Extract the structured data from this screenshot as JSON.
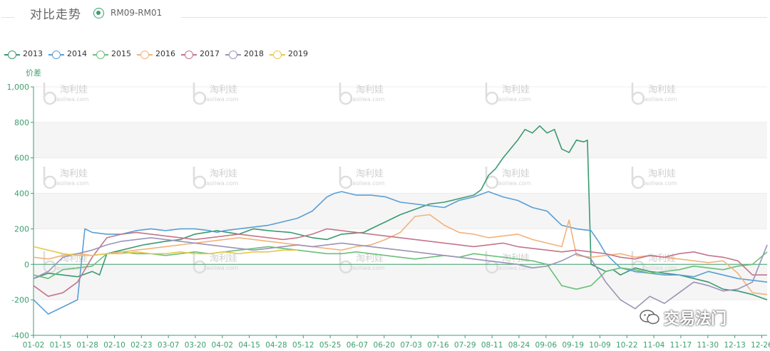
{
  "header": {
    "title": "对比走势",
    "spread_label": "RM09-RM01"
  },
  "brand": {
    "text": "交易法门"
  },
  "watermark": {
    "text": "淘利娃",
    "sub": "taoliwa.com"
  },
  "colors": {
    "accent": "#3d9f6e",
    "band": "#f5f5f5",
    "zero_line": "#3d9f6e"
  },
  "chart_data": {
    "type": "line",
    "ylabel": "价差",
    "ylim": [
      -400,
      1000
    ],
    "yticks": [
      -400,
      -200,
      0,
      200,
      400,
      600,
      800,
      1000
    ],
    "ytick_labels": [
      "-400",
      "-200",
      "0",
      "200",
      "400",
      "600",
      "800",
      "1,000"
    ],
    "x_tick_labels": [
      "01-02",
      "01-15",
      "01-28",
      "02-10",
      "02-23",
      "03-07",
      "03-20",
      "04-02",
      "04-15",
      "04-28",
      "05-12",
      "05-25",
      "06-07",
      "06-20",
      "07-03",
      "07-16",
      "07-29",
      "08-11",
      "08-24",
      "09-06",
      "09-19",
      "10-09",
      "10-22",
      "11-04",
      "11-17",
      "11-30",
      "12-13",
      "12-26"
    ],
    "x_range": [
      0,
      100
    ],
    "legend_position": "top-left",
    "grid": "alternating horizontal bands",
    "series": [
      {
        "name": "2013",
        "color": "#3a9a70",
        "x": [
          0,
          2,
          4,
          6,
          8,
          9,
          10,
          12,
          15,
          18,
          20,
          22,
          25,
          28,
          30,
          32,
          35,
          38,
          40,
          42,
          45,
          47,
          48,
          50,
          52,
          54,
          56,
          58,
          60,
          61,
          62,
          63,
          64,
          65,
          66,
          67,
          68,
          69,
          70,
          71,
          72,
          73,
          74,
          75,
          75.5,
          76,
          77,
          78,
          79,
          80,
          82,
          84,
          86,
          88,
          90,
          92,
          94,
          96,
          98,
          100
        ],
        "y": [
          -80,
          -50,
          -60,
          -70,
          -40,
          -60,
          60,
          80,
          110,
          130,
          140,
          170,
          190,
          170,
          200,
          190,
          180,
          150,
          140,
          170,
          180,
          220,
          240,
          280,
          310,
          340,
          350,
          370,
          390,
          420,
          500,
          540,
          600,
          650,
          700,
          760,
          740,
          780,
          740,
          760,
          650,
          630,
          700,
          690,
          700,
          0,
          -20,
          -40,
          -30,
          -60,
          -20,
          -40,
          -50,
          -60,
          -80,
          -100,
          -140,
          -150,
          -170,
          -200
        ]
      },
      {
        "name": "2014",
        "color": "#5a9fd4",
        "x": [
          0,
          2,
          4,
          6,
          7,
          8,
          10,
          12,
          14,
          16,
          18,
          20,
          22,
          24,
          25,
          26,
          28,
          30,
          32,
          34,
          36,
          38,
          40,
          41,
          42,
          44,
          46,
          48,
          50,
          52,
          54,
          56,
          58,
          60,
          62,
          64,
          66,
          68,
          70,
          72,
          74,
          76,
          77,
          78,
          80,
          82,
          84,
          86,
          88,
          90,
          92,
          94,
          96,
          98,
          100
        ],
        "y": [
          -200,
          -280,
          -240,
          -200,
          200,
          180,
          170,
          170,
          190,
          200,
          190,
          200,
          200,
          190,
          180,
          190,
          200,
          210,
          220,
          240,
          260,
          300,
          380,
          400,
          410,
          390,
          390,
          380,
          350,
          340,
          330,
          320,
          360,
          380,
          410,
          380,
          360,
          320,
          300,
          220,
          200,
          190,
          130,
          60,
          -20,
          -40,
          -50,
          -60,
          -60,
          -70,
          -40,
          -60,
          -80,
          -90,
          -100
        ]
      },
      {
        "name": "2015",
        "color": "#6bbf7a",
        "x": [
          0,
          2,
          4,
          6,
          8,
          10,
          12,
          14,
          16,
          18,
          20,
          22,
          24,
          26,
          28,
          30,
          32,
          34,
          36,
          38,
          40,
          42,
          44,
          46,
          48,
          50,
          52,
          54,
          56,
          58,
          60,
          62,
          64,
          66,
          68,
          70,
          72,
          74,
          76,
          78,
          80,
          82,
          84,
          86,
          88,
          90,
          92,
          94,
          96,
          98,
          100
        ],
        "y": [
          -60,
          -80,
          -30,
          -20,
          -10,
          60,
          70,
          60,
          60,
          50,
          60,
          70,
          60,
          70,
          80,
          90,
          100,
          90,
          80,
          70,
          60,
          60,
          70,
          60,
          50,
          40,
          30,
          40,
          50,
          40,
          60,
          50,
          40,
          30,
          20,
          0,
          -120,
          -140,
          -120,
          -40,
          -20,
          -30,
          -50,
          -40,
          -30,
          -10,
          -20,
          -30,
          -10,
          0,
          70
        ]
      },
      {
        "name": "2016",
        "color": "#f2b27a",
        "x": [
          0,
          2,
          4,
          6,
          8,
          10,
          12,
          14,
          16,
          18,
          20,
          22,
          24,
          26,
          28,
          30,
          32,
          34,
          36,
          38,
          40,
          42,
          44,
          46,
          48,
          50,
          52,
          54,
          56,
          58,
          60,
          62,
          64,
          66,
          68,
          70,
          72,
          73,
          74,
          76,
          78,
          80,
          82,
          84,
          86,
          88,
          90,
          92,
          94,
          96,
          98,
          100
        ],
        "y": [
          40,
          30,
          50,
          60,
          50,
          60,
          70,
          80,
          90,
          100,
          110,
          120,
          130,
          140,
          150,
          140,
          130,
          120,
          110,
          100,
          90,
          80,
          100,
          110,
          140,
          180,
          270,
          280,
          220,
          180,
          170,
          150,
          160,
          170,
          140,
          120,
          100,
          250,
          50,
          40,
          50,
          60,
          40,
          50,
          40,
          30,
          20,
          10,
          20,
          -50,
          -160,
          -170
        ]
      },
      {
        "name": "2017",
        "color": "#c4758a",
        "x": [
          0,
          2,
          4,
          6,
          8,
          10,
          12,
          14,
          16,
          18,
          20,
          22,
          24,
          26,
          28,
          30,
          32,
          34,
          36,
          38,
          40,
          42,
          44,
          46,
          48,
          50,
          52,
          54,
          56,
          58,
          60,
          62,
          64,
          66,
          68,
          70,
          72,
          74,
          76,
          78,
          80,
          82,
          84,
          86,
          88,
          90,
          92,
          94,
          96,
          98,
          100
        ],
        "y": [
          -120,
          -180,
          -160,
          -100,
          40,
          150,
          170,
          180,
          170,
          160,
          150,
          140,
          150,
          160,
          170,
          160,
          150,
          140,
          150,
          170,
          200,
          190,
          180,
          170,
          160,
          150,
          140,
          130,
          120,
          110,
          100,
          110,
          120,
          100,
          90,
          80,
          70,
          80,
          70,
          60,
          40,
          30,
          50,
          40,
          60,
          70,
          50,
          40,
          20,
          -60,
          -60
        ]
      },
      {
        "name": "2018",
        "color": "#9c93b8",
        "x": [
          0,
          2,
          4,
          6,
          8,
          10,
          12,
          14,
          16,
          18,
          20,
          22,
          24,
          26,
          28,
          30,
          32,
          34,
          36,
          38,
          40,
          42,
          44,
          46,
          48,
          50,
          52,
          54,
          56,
          58,
          60,
          62,
          64,
          66,
          68,
          70,
          72,
          74,
          76,
          78,
          80,
          82,
          84,
          86,
          88,
          90,
          92,
          94,
          96,
          98,
          100
        ],
        "y": [
          -80,
          -40,
          40,
          60,
          80,
          110,
          130,
          140,
          150,
          140,
          130,
          120,
          110,
          100,
          90,
          80,
          90,
          100,
          110,
          100,
          110,
          120,
          110,
          100,
          90,
          80,
          70,
          60,
          50,
          40,
          30,
          20,
          10,
          0,
          -20,
          -10,
          20,
          60,
          30,
          -100,
          -200,
          -250,
          -180,
          -220,
          -160,
          -100,
          -120,
          -150,
          -140,
          -100,
          110
        ]
      },
      {
        "name": "2019",
        "color": "#e6c84a",
        "x": [
          0,
          2,
          4,
          6,
          8,
          10,
          12,
          14,
          16,
          18,
          20,
          22,
          24,
          26,
          28,
          30,
          32,
          34,
          36
        ],
        "y": [
          100,
          80,
          60,
          50,
          50,
          60,
          60,
          70,
          60,
          60,
          70,
          60,
          60,
          70,
          60,
          70,
          70,
          80,
          80
        ]
      }
    ]
  }
}
